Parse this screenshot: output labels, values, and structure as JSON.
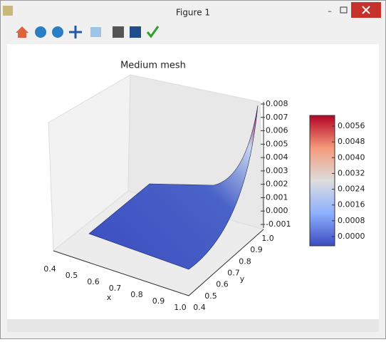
{
  "window": {
    "title": "Figure 1"
  },
  "figure": {
    "title": "Medium mesh",
    "xlabel": "x",
    "ylabel": "y",
    "xticks": [
      "0.4",
      "0.5",
      "0.6",
      "0.7",
      "0.8",
      "0.9",
      "1.0"
    ],
    "yticks": [
      "0.4",
      "0.5",
      "0.6",
      "0.7",
      "0.8",
      "0.9",
      "1.0"
    ],
    "zticks": [
      "0.008",
      "0.007",
      "0.006",
      "0.005",
      "0.004",
      "0.003",
      "0.002",
      "0.001",
      "0.000",
      "-0.001"
    ],
    "colorbar_ticks": [
      "0.0056",
      "0.0048",
      "0.0040",
      "0.0032",
      "0.0024",
      "0.0016",
      "0.0008",
      "0.0000"
    ]
  }
}
